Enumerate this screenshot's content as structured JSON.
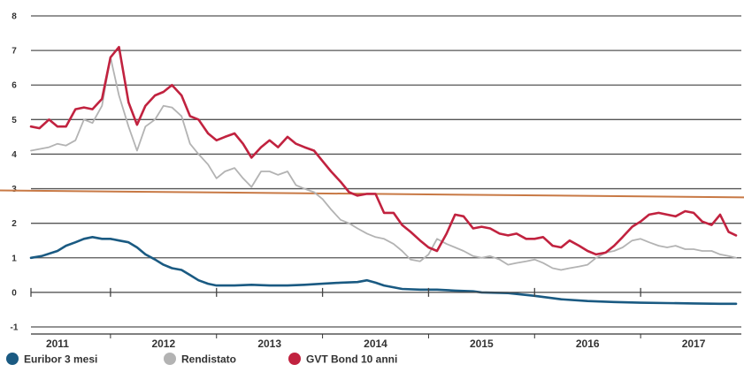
{
  "chart_data": {
    "type": "line",
    "title": "",
    "xlabel": "",
    "ylabel": "",
    "ylim": [
      -1,
      8
    ],
    "xlim": [
      2010.75,
      2017.45
    ],
    "yticks": [
      "8",
      "7",
      "6",
      "5",
      "4",
      "3",
      "2",
      "1",
      "0",
      "-1"
    ],
    "ytick_values": [
      8,
      7,
      6,
      5,
      4,
      3,
      2,
      1,
      0,
      -1
    ],
    "xticks": [
      "2011",
      "2012",
      "2013",
      "2014",
      "2015",
      "2016",
      "2017"
    ],
    "xtick_values": [
      2011,
      2012,
      2013,
      2014,
      2015,
      2016,
      2017
    ],
    "grid": true,
    "legend_position": "bottom-left",
    "reference_line": {
      "from": [
        2010.75,
        2.95
      ],
      "to": [
        2017.45,
        2.75
      ],
      "color": "#c87945"
    },
    "series": [
      {
        "name": "Euribor 3 mesi",
        "color": "#1a5a82",
        "x": [
          2010.75,
          2010.85,
          2011.0,
          2011.08,
          2011.17,
          2011.25,
          2011.33,
          2011.42,
          2011.5,
          2011.58,
          2011.67,
          2011.75,
          2011.83,
          2011.92,
          2012.0,
          2012.08,
          2012.17,
          2012.25,
          2012.33,
          2012.42,
          2012.5,
          2012.67,
          2012.83,
          2013.0,
          2013.17,
          2013.33,
          2013.5,
          2013.67,
          2013.83,
          2013.92,
          2014.0,
          2014.08,
          2014.25,
          2014.42,
          2014.58,
          2014.75,
          2014.92,
          2015.0,
          2015.25,
          2015.5,
          2015.75,
          2016.0,
          2016.25,
          2016.5,
          2016.75,
          2017.0,
          2017.25,
          2017.4
        ],
        "y": [
          1.0,
          1.05,
          1.2,
          1.35,
          1.45,
          1.55,
          1.6,
          1.55,
          1.55,
          1.5,
          1.45,
          1.3,
          1.1,
          0.95,
          0.8,
          0.7,
          0.65,
          0.5,
          0.35,
          0.25,
          0.2,
          0.2,
          0.22,
          0.2,
          0.2,
          0.22,
          0.25,
          0.28,
          0.3,
          0.35,
          0.28,
          0.2,
          0.1,
          0.08,
          0.08,
          0.05,
          0.03,
          0.0,
          -0.02,
          -0.1,
          -0.2,
          -0.25,
          -0.28,
          -0.3,
          -0.31,
          -0.32,
          -0.33,
          -0.33
        ]
      },
      {
        "name": "Rendistato",
        "color": "#b3b3b3",
        "x": [
          2010.75,
          2010.92,
          2011.0,
          2011.08,
          2011.17,
          2011.25,
          2011.33,
          2011.42,
          2011.5,
          2011.58,
          2011.67,
          2011.75,
          2011.83,
          2011.92,
          2012.0,
          2012.08,
          2012.17,
          2012.25,
          2012.33,
          2012.42,
          2012.5,
          2012.58,
          2012.67,
          2012.75,
          2012.83,
          2012.92,
          2013.0,
          2013.08,
          2013.17,
          2013.25,
          2013.33,
          2013.42,
          2013.5,
          2013.58,
          2013.67,
          2013.75,
          2013.83,
          2013.92,
          2014.0,
          2014.08,
          2014.17,
          2014.25,
          2014.33,
          2014.42,
          2014.5,
          2014.58,
          2014.67,
          2014.75,
          2014.83,
          2014.92,
          2015.0,
          2015.08,
          2015.17,
          2015.25,
          2015.33,
          2015.42,
          2015.5,
          2015.58,
          2015.67,
          2015.75,
          2015.83,
          2015.92,
          2016.0,
          2016.08,
          2016.17,
          2016.25,
          2016.33,
          2016.42,
          2016.5,
          2016.58,
          2016.67,
          2016.75,
          2016.83,
          2016.92,
          2017.0,
          2017.08,
          2017.17,
          2017.25,
          2017.33,
          2017.4
        ],
        "y": [
          4.1,
          4.2,
          4.3,
          4.25,
          4.4,
          5.0,
          4.9,
          5.4,
          6.8,
          5.7,
          4.8,
          4.1,
          4.8,
          5.0,
          5.4,
          5.35,
          5.1,
          4.3,
          4.0,
          3.7,
          3.3,
          3.5,
          3.6,
          3.3,
          3.05,
          3.5,
          3.5,
          3.4,
          3.5,
          3.1,
          3.0,
          2.9,
          2.7,
          2.4,
          2.1,
          2.0,
          1.85,
          1.7,
          1.6,
          1.55,
          1.4,
          1.2,
          0.95,
          0.9,
          1.1,
          1.55,
          1.4,
          1.3,
          1.2,
          1.05,
          1.0,
          1.05,
          0.95,
          0.8,
          0.85,
          0.9,
          0.95,
          0.85,
          0.7,
          0.65,
          0.7,
          0.75,
          0.8,
          1.0,
          1.15,
          1.2,
          1.3,
          1.5,
          1.55,
          1.45,
          1.35,
          1.3,
          1.35,
          1.25,
          1.25,
          1.2,
          1.2,
          1.1,
          1.05,
          1.0
        ]
      },
      {
        "name": "GVT Bond 10 anni",
        "color": "#c1223f",
        "x": [
          2010.75,
          2010.83,
          2010.92,
          2011.0,
          2011.08,
          2011.17,
          2011.25,
          2011.33,
          2011.42,
          2011.5,
          2011.58,
          2011.67,
          2011.75,
          2011.83,
          2011.92,
          2012.0,
          2012.08,
          2012.17,
          2012.25,
          2012.33,
          2012.42,
          2012.5,
          2012.58,
          2012.67,
          2012.75,
          2012.83,
          2012.92,
          2013.0,
          2013.08,
          2013.17,
          2013.25,
          2013.33,
          2013.42,
          2013.5,
          2013.58,
          2013.67,
          2013.75,
          2013.83,
          2013.92,
          2014.0,
          2014.08,
          2014.17,
          2014.25,
          2014.33,
          2014.42,
          2014.5,
          2014.58,
          2014.67,
          2014.75,
          2014.83,
          2014.92,
          2015.0,
          2015.08,
          2015.17,
          2015.25,
          2015.33,
          2015.42,
          2015.5,
          2015.58,
          2015.67,
          2015.75,
          2015.83,
          2015.92,
          2016.0,
          2016.08,
          2016.17,
          2016.25,
          2016.33,
          2016.42,
          2016.5,
          2016.58,
          2016.67,
          2016.75,
          2016.83,
          2016.92,
          2017.0,
          2017.08,
          2017.17,
          2017.25,
          2017.33,
          2017.4
        ],
        "y": [
          4.8,
          4.75,
          5.0,
          4.8,
          4.8,
          5.3,
          5.35,
          5.3,
          5.6,
          6.8,
          7.1,
          5.5,
          4.85,
          5.4,
          5.7,
          5.8,
          6.0,
          5.7,
          5.1,
          5.0,
          4.6,
          4.4,
          4.5,
          4.6,
          4.3,
          3.9,
          4.2,
          4.4,
          4.2,
          4.5,
          4.3,
          4.2,
          4.1,
          3.8,
          3.5,
          3.2,
          2.9,
          2.8,
          2.85,
          2.85,
          2.3,
          2.3,
          1.95,
          1.75,
          1.5,
          1.3,
          1.2,
          1.7,
          2.25,
          2.2,
          1.85,
          1.9,
          1.85,
          1.7,
          1.65,
          1.7,
          1.55,
          1.55,
          1.6,
          1.35,
          1.3,
          1.5,
          1.35,
          1.2,
          1.1,
          1.15,
          1.35,
          1.6,
          1.9,
          2.05,
          2.25,
          2.3,
          2.25,
          2.2,
          2.35,
          2.3,
          2.05,
          1.95,
          2.25,
          1.75,
          1.65
        ]
      }
    ]
  }
}
